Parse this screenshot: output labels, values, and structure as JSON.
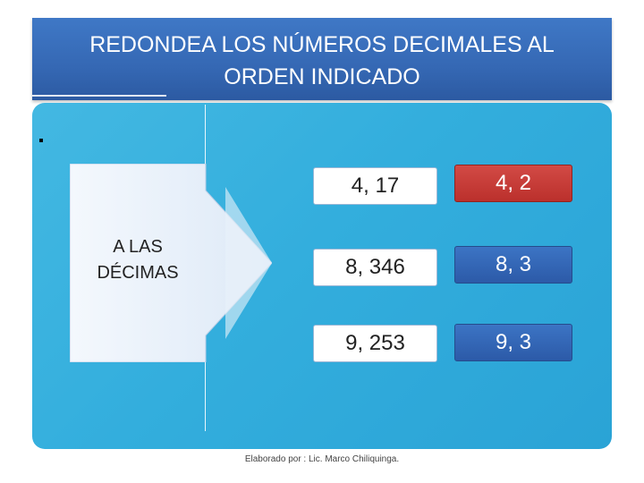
{
  "slide": {
    "title_line1": "REDONDEA LOS NÚMEROS DECIMALES AL",
    "title_line2": "ORDEN INDICADO",
    "bullet": "",
    "arrow_label_line1": "A LAS",
    "arrow_label_line2": "DÉCIMAS",
    "rows": [
      {
        "value": "4, 17",
        "rounded": "4, 2"
      },
      {
        "value": "8, 346",
        "rounded": "8, 3"
      },
      {
        "value": "9, 253",
        "rounded": "9, 3"
      }
    ],
    "credit": "Elaborado por : Lic. Marco Chiliquinga."
  },
  "colors": {
    "header": "#3568b4",
    "panel": "#33aedd",
    "red_cell": "#bb302c",
    "blue_cell": "#2c5aa8"
  }
}
